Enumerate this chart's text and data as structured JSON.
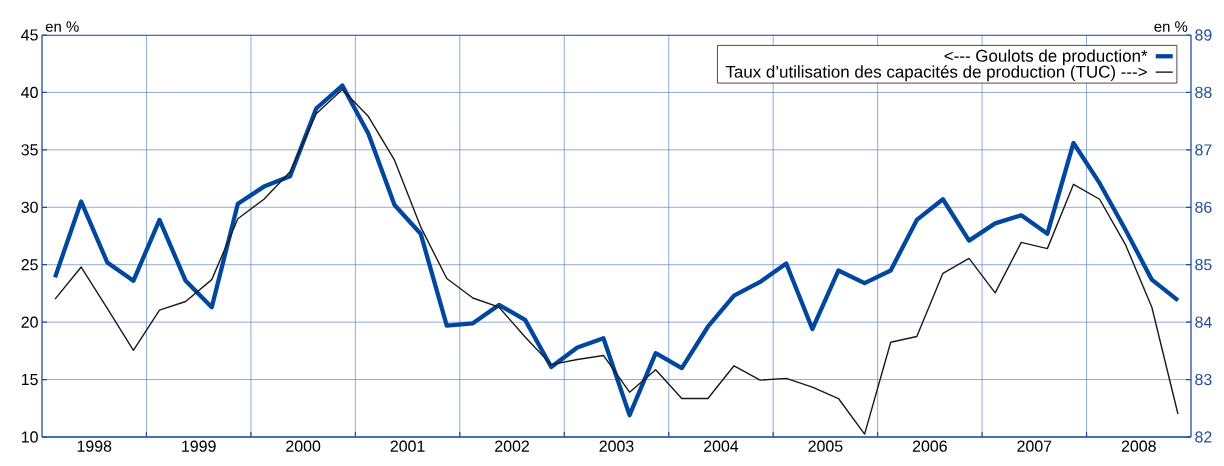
{
  "chart_data": {
    "type": "line",
    "ylabel": "en %",
    "y2label": "en %",
    "x": [
      1998.125,
      1998.375,
      1998.625,
      1998.875,
      1999.125,
      1999.375,
      1999.625,
      1999.875,
      2000.125,
      2000.375,
      2000.625,
      2000.875,
      2001.125,
      2001.375,
      2001.625,
      2001.875,
      2002.125,
      2002.375,
      2002.625,
      2002.875,
      2003.125,
      2003.375,
      2003.625,
      2003.875,
      2004.125,
      2004.375,
      2004.625,
      2004.875,
      2005.125,
      2005.375,
      2005.625,
      2005.875,
      2006.125,
      2006.375,
      2006.625,
      2006.875,
      2007.125,
      2007.375,
      2007.625,
      2007.875,
      2008.125,
      2008.375,
      2008.625,
      2008.875
    ],
    "series": [
      {
        "name": "<--- Goulots de production*",
        "color": "#00479d",
        "axis": "y",
        "values": [
          23.9,
          30.5,
          25.2,
          23.6,
          28.9,
          23.6,
          21.3,
          30.3,
          31.8,
          32.7,
          38.6,
          40.6,
          36.4,
          30.2,
          27.7,
          19.7,
          19.9,
          21.5,
          20.2,
          16.1,
          17.8,
          18.6,
          11.9,
          17.3,
          16.0,
          19.6,
          22.3,
          23.5,
          25.1,
          19.4,
          24.5,
          23.4,
          24.5,
          28.9,
          30.7,
          27.1,
          28.6,
          29.3,
          27.7,
          35.6,
          32.1,
          28.0,
          23.7,
          21.9
        ]
      },
      {
        "name": "Taux d’utilisation des capacités de production (TUC) --->",
        "color": "#1a1a1a",
        "axis": "y2",
        "values": [
          84.4,
          84.96,
          84.24,
          83.51,
          84.21,
          84.36,
          84.74,
          85.8,
          86.14,
          86.62,
          87.63,
          88.05,
          87.58,
          86.82,
          85.66,
          84.76,
          84.42,
          84.26,
          83.74,
          83.26,
          83.35,
          83.42,
          82.78,
          83.17,
          82.67,
          82.67,
          83.24,
          82.99,
          83.02,
          82.87,
          82.67,
          82.05,
          83.65,
          83.75,
          84.85,
          85.11,
          84.51,
          85.39,
          85.28,
          86.4,
          86.14,
          85.34,
          84.26,
          82.4
        ]
      }
    ],
    "xlim": [
      1998,
      2009
    ],
    "xticks": [
      {
        "value": 1999,
        "label": null
      },
      {
        "value": 2000,
        "label": null
      },
      {
        "value": 2001,
        "label": null
      },
      {
        "value": 2002,
        "label": null
      },
      {
        "value": 2003,
        "label": null
      },
      {
        "value": 2004,
        "label": null
      },
      {
        "value": 2005,
        "label": null
      },
      {
        "value": 2006,
        "label": null
      },
      {
        "value": 2007,
        "label": null
      },
      {
        "value": 2008,
        "label": null
      },
      {
        "value": 1998.5,
        "label": "1998"
      },
      {
        "value": 1999.5,
        "label": "1999"
      },
      {
        "value": 2000.5,
        "label": "2000"
      },
      {
        "value": 2001.5,
        "label": "2001"
      },
      {
        "value": 2002.5,
        "label": "2002"
      },
      {
        "value": 2003.5,
        "label": "2003"
      },
      {
        "value": 2004.5,
        "label": "2004"
      },
      {
        "value": 2005.5,
        "label": "2005"
      },
      {
        "value": 2006.5,
        "label": "2006"
      },
      {
        "value": 2007.5,
        "label": "2007"
      },
      {
        "value": 2008.5,
        "label": "2008"
      }
    ],
    "ylim": [
      10,
      45
    ],
    "yticks": [
      10,
      15,
      20,
      25,
      30,
      35,
      40,
      45
    ],
    "y2lim": [
      82,
      89
    ],
    "y2ticks": [
      82,
      83,
      84,
      85,
      86,
      87,
      88,
      89
    ],
    "grid": true,
    "legend": "top right",
    "marker": "none",
    "line_style": "solid"
  }
}
